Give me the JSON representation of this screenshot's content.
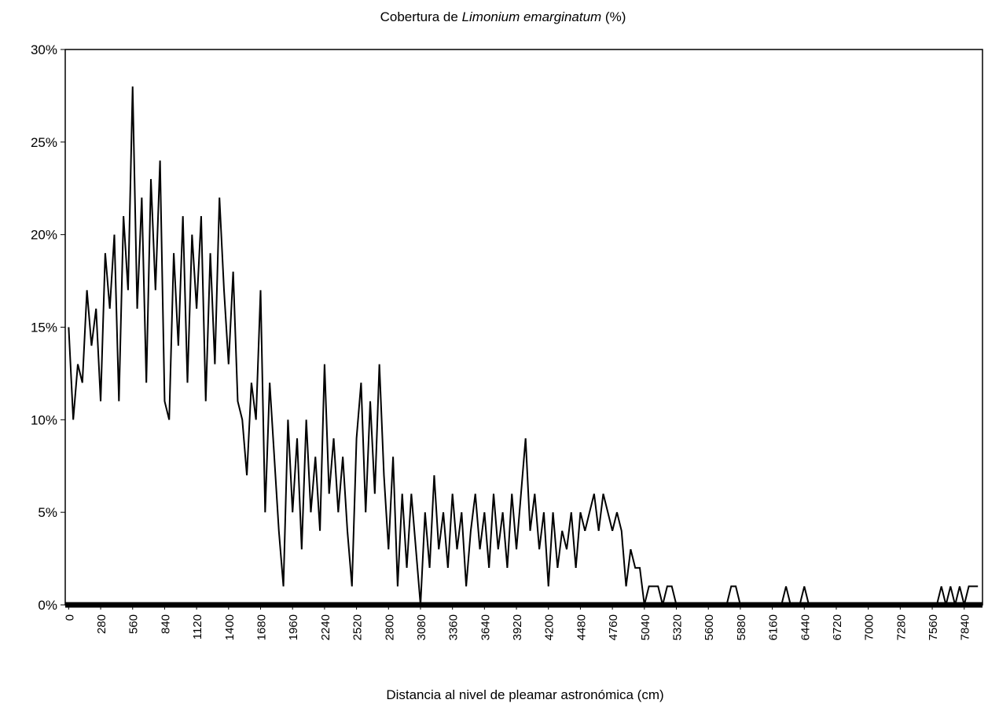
{
  "chart_data": {
    "type": "line",
    "title": [
      {
        "text": "Cobertura de "
      },
      {
        "text": "Limonium emarginatum",
        "italic": true
      },
      {
        "text": " (%)"
      }
    ],
    "x_label": "Distancia al nivel de pleamar astronómica (cm)",
    "xlim": [
      -30,
      8000
    ],
    "xticks": [
      0,
      280,
      560,
      840,
      1120,
      1400,
      1680,
      1960,
      2240,
      2520,
      2800,
      3080,
      3360,
      3640,
      3920,
      4200,
      4480,
      4760,
      5040,
      5320,
      5600,
      5880,
      6160,
      6440,
      6720,
      7000,
      7280,
      7560,
      7840
    ],
    "ylim": [
      0,
      30
    ],
    "yticks": [
      {
        "value": 0,
        "label": "0%"
      },
      {
        "value": 5,
        "label": "5%"
      },
      {
        "value": 10,
        "label": "10%"
      },
      {
        "value": 15,
        "label": "15%"
      },
      {
        "value": 20,
        "label": "20%"
      },
      {
        "value": 25,
        "label": "25%"
      },
      {
        "value": 30,
        "label": "30%"
      }
    ],
    "color": "#000000",
    "x": [
      0,
      40,
      80,
      120,
      160,
      200,
      240,
      280,
      320,
      360,
      400,
      440,
      480,
      520,
      560,
      600,
      640,
      680,
      720,
      760,
      800,
      840,
      880,
      920,
      960,
      1000,
      1040,
      1080,
      1120,
      1160,
      1200,
      1240,
      1280,
      1320,
      1360,
      1400,
      1440,
      1480,
      1520,
      1560,
      1600,
      1640,
      1680,
      1720,
      1760,
      1800,
      1840,
      1880,
      1920,
      1960,
      2000,
      2040,
      2080,
      2120,
      2160,
      2200,
      2240,
      2280,
      2320,
      2360,
      2400,
      2440,
      2480,
      2520,
      2560,
      2600,
      2640,
      2680,
      2720,
      2760,
      2800,
      2840,
      2880,
      2920,
      2960,
      3000,
      3040,
      3080,
      3120,
      3160,
      3200,
      3240,
      3280,
      3320,
      3360,
      3400,
      3440,
      3480,
      3520,
      3560,
      3600,
      3640,
      3680,
      3720,
      3760,
      3800,
      3840,
      3880,
      3920,
      3960,
      4000,
      4040,
      4080,
      4120,
      4160,
      4200,
      4240,
      4280,
      4320,
      4360,
      4400,
      4440,
      4480,
      4520,
      4560,
      4600,
      4640,
      4680,
      4720,
      4760,
      4800,
      4840,
      4880,
      4920,
      4960,
      5000,
      5040,
      5080,
      5120,
      5160,
      5200,
      5240,
      5280,
      5320,
      5360,
      5400,
      5440,
      5480,
      5520,
      5560,
      5600,
      5640,
      5680,
      5720,
      5760,
      5800,
      5840,
      5880,
      5920,
      5960,
      6000,
      6040,
      6080,
      6120,
      6160,
      6200,
      6240,
      6280,
      6320,
      6360,
      6400,
      6440,
      6480,
      6520,
      6560,
      6600,
      6640,
      6680,
      6720,
      6760,
      6800,
      6840,
      6880,
      6920,
      6960,
      7000,
      7040,
      7080,
      7120,
      7160,
      7200,
      7240,
      7280,
      7320,
      7360,
      7400,
      7440,
      7480,
      7520,
      7560,
      7600,
      7640,
      7680,
      7720,
      7760,
      7800,
      7840,
      7880,
      7920,
      7960
    ],
    "values": [
      15,
      10,
      13,
      12,
      17,
      14,
      16,
      11,
      19,
      16,
      20,
      11,
      21,
      17,
      28,
      16,
      22,
      12,
      23,
      17,
      24,
      11,
      10,
      19,
      14,
      21,
      12,
      20,
      16,
      21,
      11,
      19,
      13,
      22,
      17,
      13,
      18,
      11,
      10,
      7,
      12,
      10,
      17,
      5,
      12,
      8,
      4,
      1,
      10,
      5,
      9,
      3,
      10,
      5,
      8,
      4,
      13,
      6,
      9,
      5,
      8,
      4,
      1,
      9,
      12,
      5,
      11,
      6,
      13,
      7,
      3,
      8,
      1,
      6,
      2,
      6,
      3,
      0,
      5,
      2,
      7,
      3,
      5,
      2,
      6,
      3,
      5,
      1,
      4,
      6,
      3,
      5,
      2,
      6,
      3,
      5,
      2,
      6,
      3,
      6,
      9,
      4,
      6,
      3,
      5,
      1,
      5,
      2,
      4,
      3,
      5,
      2,
      5,
      4,
      5,
      6,
      4,
      6,
      5,
      4,
      5,
      4,
      1,
      3,
      2,
      2,
      0,
      1,
      1,
      1,
      0,
      1,
      1,
      0,
      0,
      0,
      0,
      0,
      0,
      0,
      0,
      0,
      0,
      0,
      0,
      1,
      1,
      0,
      0,
      0,
      0,
      0,
      0,
      0,
      0,
      0,
      0,
      1,
      0,
      0,
      0,
      1,
      0,
      0,
      0,
      0,
      0,
      0,
      0,
      0,
      0,
      0,
      0,
      0,
      0,
      0,
      0,
      0,
      0,
      0,
      0,
      0,
      0,
      0,
      0,
      0,
      0,
      0,
      0,
      0,
      0,
      1,
      0,
      1,
      0,
      1,
      0,
      1,
      1,
      1
    ]
  }
}
